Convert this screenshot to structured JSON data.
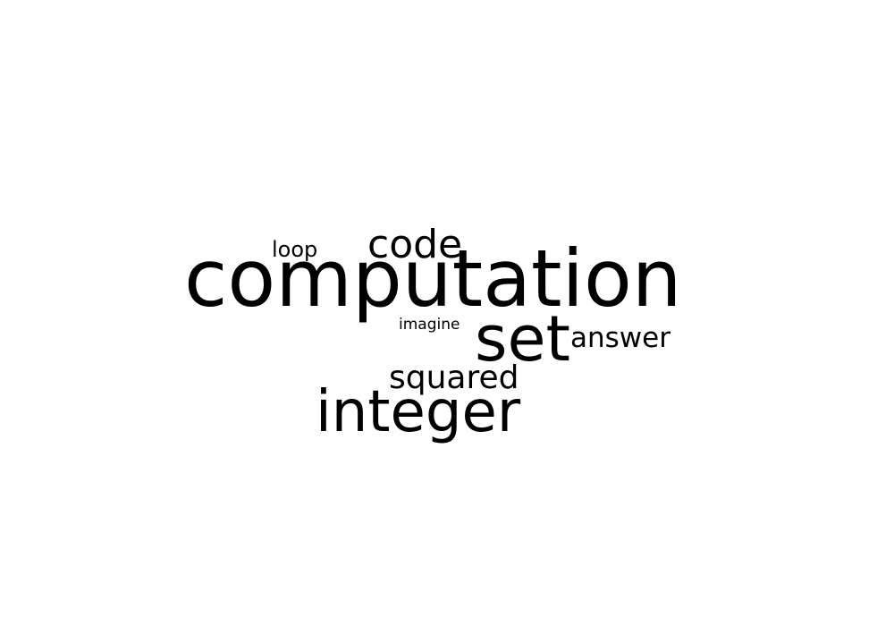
{
  "words": {
    "computation": "computation",
    "integer": "integer",
    "set": "set",
    "code": "code",
    "squared": "squared",
    "answer": "answer",
    "loop": "loop",
    "imagine": "imagine"
  },
  "colors": {
    "background": "#ffffff",
    "text": "#000000"
  }
}
